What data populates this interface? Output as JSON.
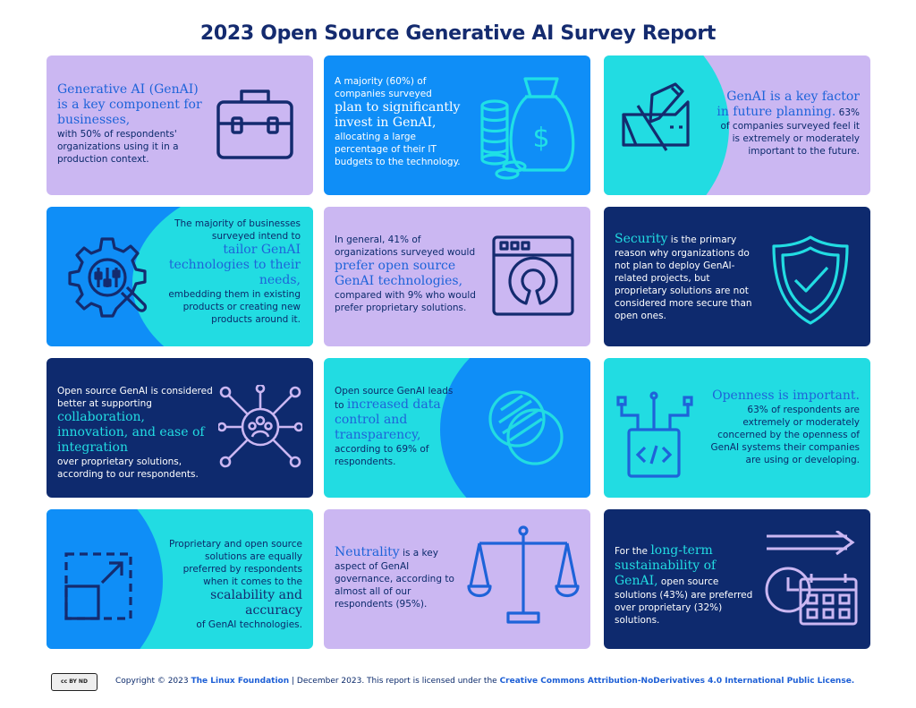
{
  "title": "2023 Open Source Generative AI Survey Report",
  "cards": {
    "c1": {
      "highlight": "Generative AI (GenAI) is a key component for businesses,",
      "body": "with 50% of respondents' organizations using it in a production context.",
      "icon": "briefcase-icon"
    },
    "c2": {
      "pre": "A majority (60%) of companies surveyed",
      "highlight": "plan to significantly invest in GenAI,",
      "body": "allocating a large percentage of their IT budgets to the technology.",
      "icon": "money-bag-icon"
    },
    "c3": {
      "highlight": "GenAI is a key factor in future planning.",
      "body": "63% of companies surveyed feel it is extremely or moderately important to the future.",
      "icon": "ruler-pencil-icon"
    },
    "c4": {
      "pre": "The majority of businesses surveyed intend to",
      "highlight": "tailor GenAI technologies to their needs,",
      "body": "embedding them in existing products or creating new products around it.",
      "icon": "gear-wrench-icon"
    },
    "c5": {
      "pre": "In general, 41% of organizations surveyed would",
      "highlight": "prefer open source GenAI technologies,",
      "body": "compared with 9% who would prefer proprietary solutions.",
      "icon": "open-source-window-icon"
    },
    "c6": {
      "highlight": "Security",
      "body": "is the primary reason why organizations do not plan to deploy GenAI-related projects, but proprietary solutions are not considered more secure than open ones.",
      "icon": "shield-check-icon"
    },
    "c7": {
      "pre": "Open source GenAI is considered better at supporting",
      "highlight": "collaboration, innovation, and ease of integration",
      "body": "over proprietary solutions, according to our respondents.",
      "icon": "people-network-icon"
    },
    "c8": {
      "pre": "Open source GenAI leads to",
      "highlight": "increased data control and transparency,",
      "body": "according to 69% of respondents.",
      "icon": "lens-icon"
    },
    "c9": {
      "highlight": "Openness is important.",
      "body": "63% of respondents are extremely or moderately concerned by the openness of GenAI systems their companies are using or developing.",
      "icon": "code-box-icon"
    },
    "c10": {
      "pre": "Proprietary and open source solutions are equally preferred by respondents when it comes to the",
      "highlight": "scalability and accuracy",
      "body": "of GenAI technologies.",
      "icon": "scale-box-icon"
    },
    "c11": {
      "highlight": "Neutrality",
      "body": "is a key aspect of GenAI governance, according to almost all of our respondents (95%).",
      "icon": "balance-scale-icon"
    },
    "c12": {
      "pre": "For the",
      "highlight": "long-term sustainability of GenAI,",
      "body": "open source solutions (43%) are preferred over proprietary (32%) solutions.",
      "icon": "calendar-arrow-icon"
    }
  },
  "footer": {
    "cc_badge": "cc  BY  ND",
    "prefix": "Copyright © 2023",
    "org": "The Linux Foundation",
    "middle": "| December 2023. This report is licensed under the",
    "license": "Creative Commons Attribution-NoDerivatives 4.0 International Public License."
  },
  "colors": {
    "lavender": "#cbb7f2",
    "blue": "#0f8ef7",
    "cyan": "#22dce2",
    "navy": "#0e2a6e",
    "title": "#142b6f"
  }
}
